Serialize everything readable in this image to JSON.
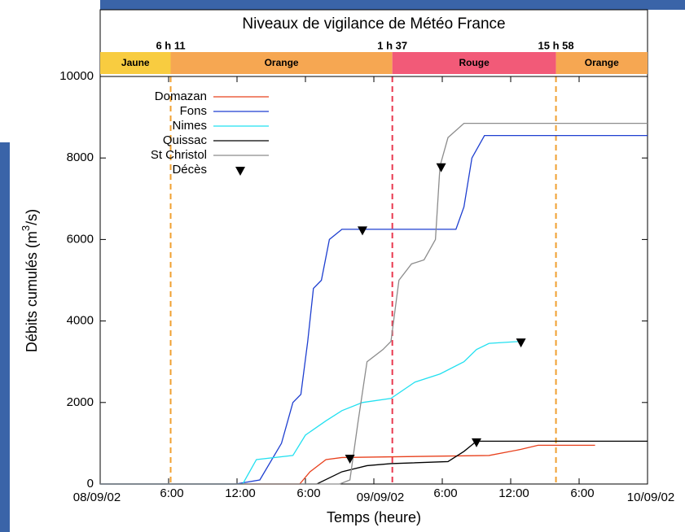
{
  "chart_data": {
    "type": "line",
    "title": "Niveaux de vigilance de Météo France",
    "x_label": "Temps (heure)",
    "y_label_parts": [
      "Débits cumulés (m",
      "3",
      "/s)"
    ],
    "xlim": [
      0,
      48
    ],
    "xticks": [
      {
        "value": 0,
        "label": "08/09/02"
      },
      {
        "value": 6,
        "label": "6:00"
      },
      {
        "value": 12,
        "label": "12:00"
      },
      {
        "value": 18,
        "label": "6:00"
      },
      {
        "value": 24,
        "label": "09/09/02"
      },
      {
        "value": 30,
        "label": "6:00"
      },
      {
        "value": 36,
        "label": "12:00"
      },
      {
        "value": 42,
        "label": "6:00"
      },
      {
        "value": 48,
        "label": "10/09/02"
      }
    ],
    "ylim": [
      0,
      10000
    ],
    "yticks": [
      0,
      2000,
      4000,
      6000,
      8000,
      10000
    ],
    "series": [
      {
        "name": "Domazan",
        "color": "#e8401c",
        "x": [
          0,
          17.5,
          18.4,
          19.8,
          21.2,
          34.1,
          36.9,
          38.4,
          43.4
        ],
        "values": [
          0,
          0,
          300,
          600,
          650,
          700,
          850,
          950,
          950
        ]
      },
      {
        "name": "Fons",
        "color": "#1e3fd0",
        "x": [
          0,
          11.9,
          14,
          15.9,
          16.9,
          17.6,
          18.2,
          18.7,
          19.4,
          20.1,
          21.2,
          31.2,
          31.9,
          32.6,
          33.7,
          48
        ],
        "values": [
          0,
          0,
          100,
          1000,
          2000,
          2200,
          3500,
          4800,
          5000,
          6000,
          6250,
          6250,
          6800,
          8000,
          8550,
          8550
        ]
      },
      {
        "name": "Nimes",
        "color": "#22e0f0",
        "x": [
          0,
          12.5,
          13.7,
          16.9,
          18,
          19.8,
          21.2,
          23,
          25.5,
          27.6,
          29.8,
          31.9,
          33,
          34.1,
          36.9
        ],
        "values": [
          0,
          0,
          600,
          700,
          1200,
          1550,
          1800,
          2000,
          2100,
          2500,
          2700,
          3000,
          3300,
          3450,
          3500
        ]
      },
      {
        "name": "Quissac",
        "color": "#000000",
        "x": [
          0,
          19,
          21.2,
          23.4,
          25.5,
          30.5,
          31.9,
          33,
          48
        ],
        "values": [
          0,
          0,
          300,
          450,
          500,
          550,
          800,
          1050,
          1050
        ]
      },
      {
        "name": "St Christol",
        "color": "#8c8c8c",
        "x": [
          0,
          21,
          21.9,
          22.6,
          23.4,
          24.8,
          25.5,
          26.2,
          27.3,
          28.4,
          29.4,
          29.8,
          30.5,
          31.9,
          48
        ],
        "values": [
          0,
          0,
          100,
          1500,
          3000,
          3300,
          3500,
          5000,
          5400,
          5500,
          6000,
          7800,
          8500,
          8850,
          8850
        ]
      }
    ],
    "deces": {
      "name": "Décès",
      "color": "#000000",
      "x": [
        21.9,
        23,
        29.9,
        33,
        36.9
      ],
      "values": [
        600,
        6200,
        7750,
        1000,
        3450
      ]
    },
    "vigilance": {
      "levels": [
        {
          "label": "Jaune",
          "start": 0,
          "end": 6.18,
          "color": "#f8cc40"
        },
        {
          "label": "Orange",
          "start": 6.18,
          "end": 25.62,
          "color": "#f6a752"
        },
        {
          "label": "Rouge",
          "start": 25.62,
          "end": 39.97,
          "color": "#f25a78"
        },
        {
          "label": "Orange",
          "start": 39.97,
          "end": 48,
          "color": "#f6a752"
        }
      ],
      "changes": [
        {
          "value": 6.18,
          "label": "6 h 11",
          "color": "#f0a030"
        },
        {
          "value": 25.62,
          "label": "1 h 37",
          "color": "#e8384f"
        },
        {
          "value": 39.97,
          "label": "15 h 58",
          "color": "#f0a030"
        }
      ]
    }
  }
}
